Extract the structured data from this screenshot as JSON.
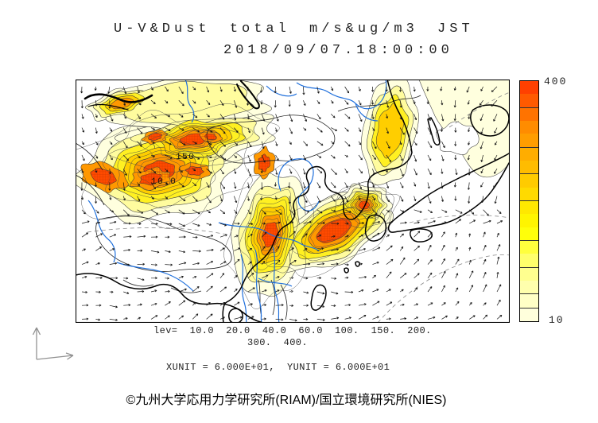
{
  "header": {
    "title": "U-V&Dust total m/s&ug/m3 JST",
    "timestamp": "2018/09/07.18:00:00"
  },
  "colorbar": {
    "max_label": "400",
    "min_label": "10",
    "colors": [
      "#FF4000",
      "#FF5A00",
      "#FF7300",
      "#FF8C00",
      "#FF9D00",
      "#FFAD00",
      "#FFBC00",
      "#FFCB00",
      "#FFDA00",
      "#FFE800",
      "#FFF500",
      "#FFFF0A",
      "#FFFF3D",
      "#FFFF6B",
      "#FFFF8F",
      "#FFFFAD",
      "#FFFFC6",
      "#FFFFDC"
    ],
    "tick_after": [
      2,
      5,
      7,
      9,
      12,
      14,
      16,
      17
    ]
  },
  "map": {
    "contour_label_inner": "150",
    "contour_label_outer": "10.0"
  },
  "footer": {
    "lev_line1": "lev=  10.0  20.0  40.0  60.0  100.  150.  200.",
    "lev_line2": "300.  400.",
    "units_line": "XUNIT = 6.000E+01,  YUNIT = 6.000E+01",
    "copyright": "©九州大学応用力学研究所(RIAM)/国立環境研究所(NIES)"
  },
  "chart_data": {
    "type": "heatmap",
    "title": "U-V&Dust total m/s&ug/m3 JST",
    "timestamp": "2018/09/07.18:00:00",
    "region": "East Asia",
    "variables": {
      "wind_vectors": "U-V (m/s)",
      "dust_fill": "Dust total (ug/m3)"
    },
    "contour_levels": [
      10.0,
      20.0,
      40.0,
      60.0,
      100,
      150,
      200,
      300,
      400
    ],
    "colorbar_range": [
      10,
      400
    ],
    "xunit": "6.000E+01",
    "yunit": "6.000E+01",
    "legend_position": "right-colorbar",
    "grid": false
  }
}
